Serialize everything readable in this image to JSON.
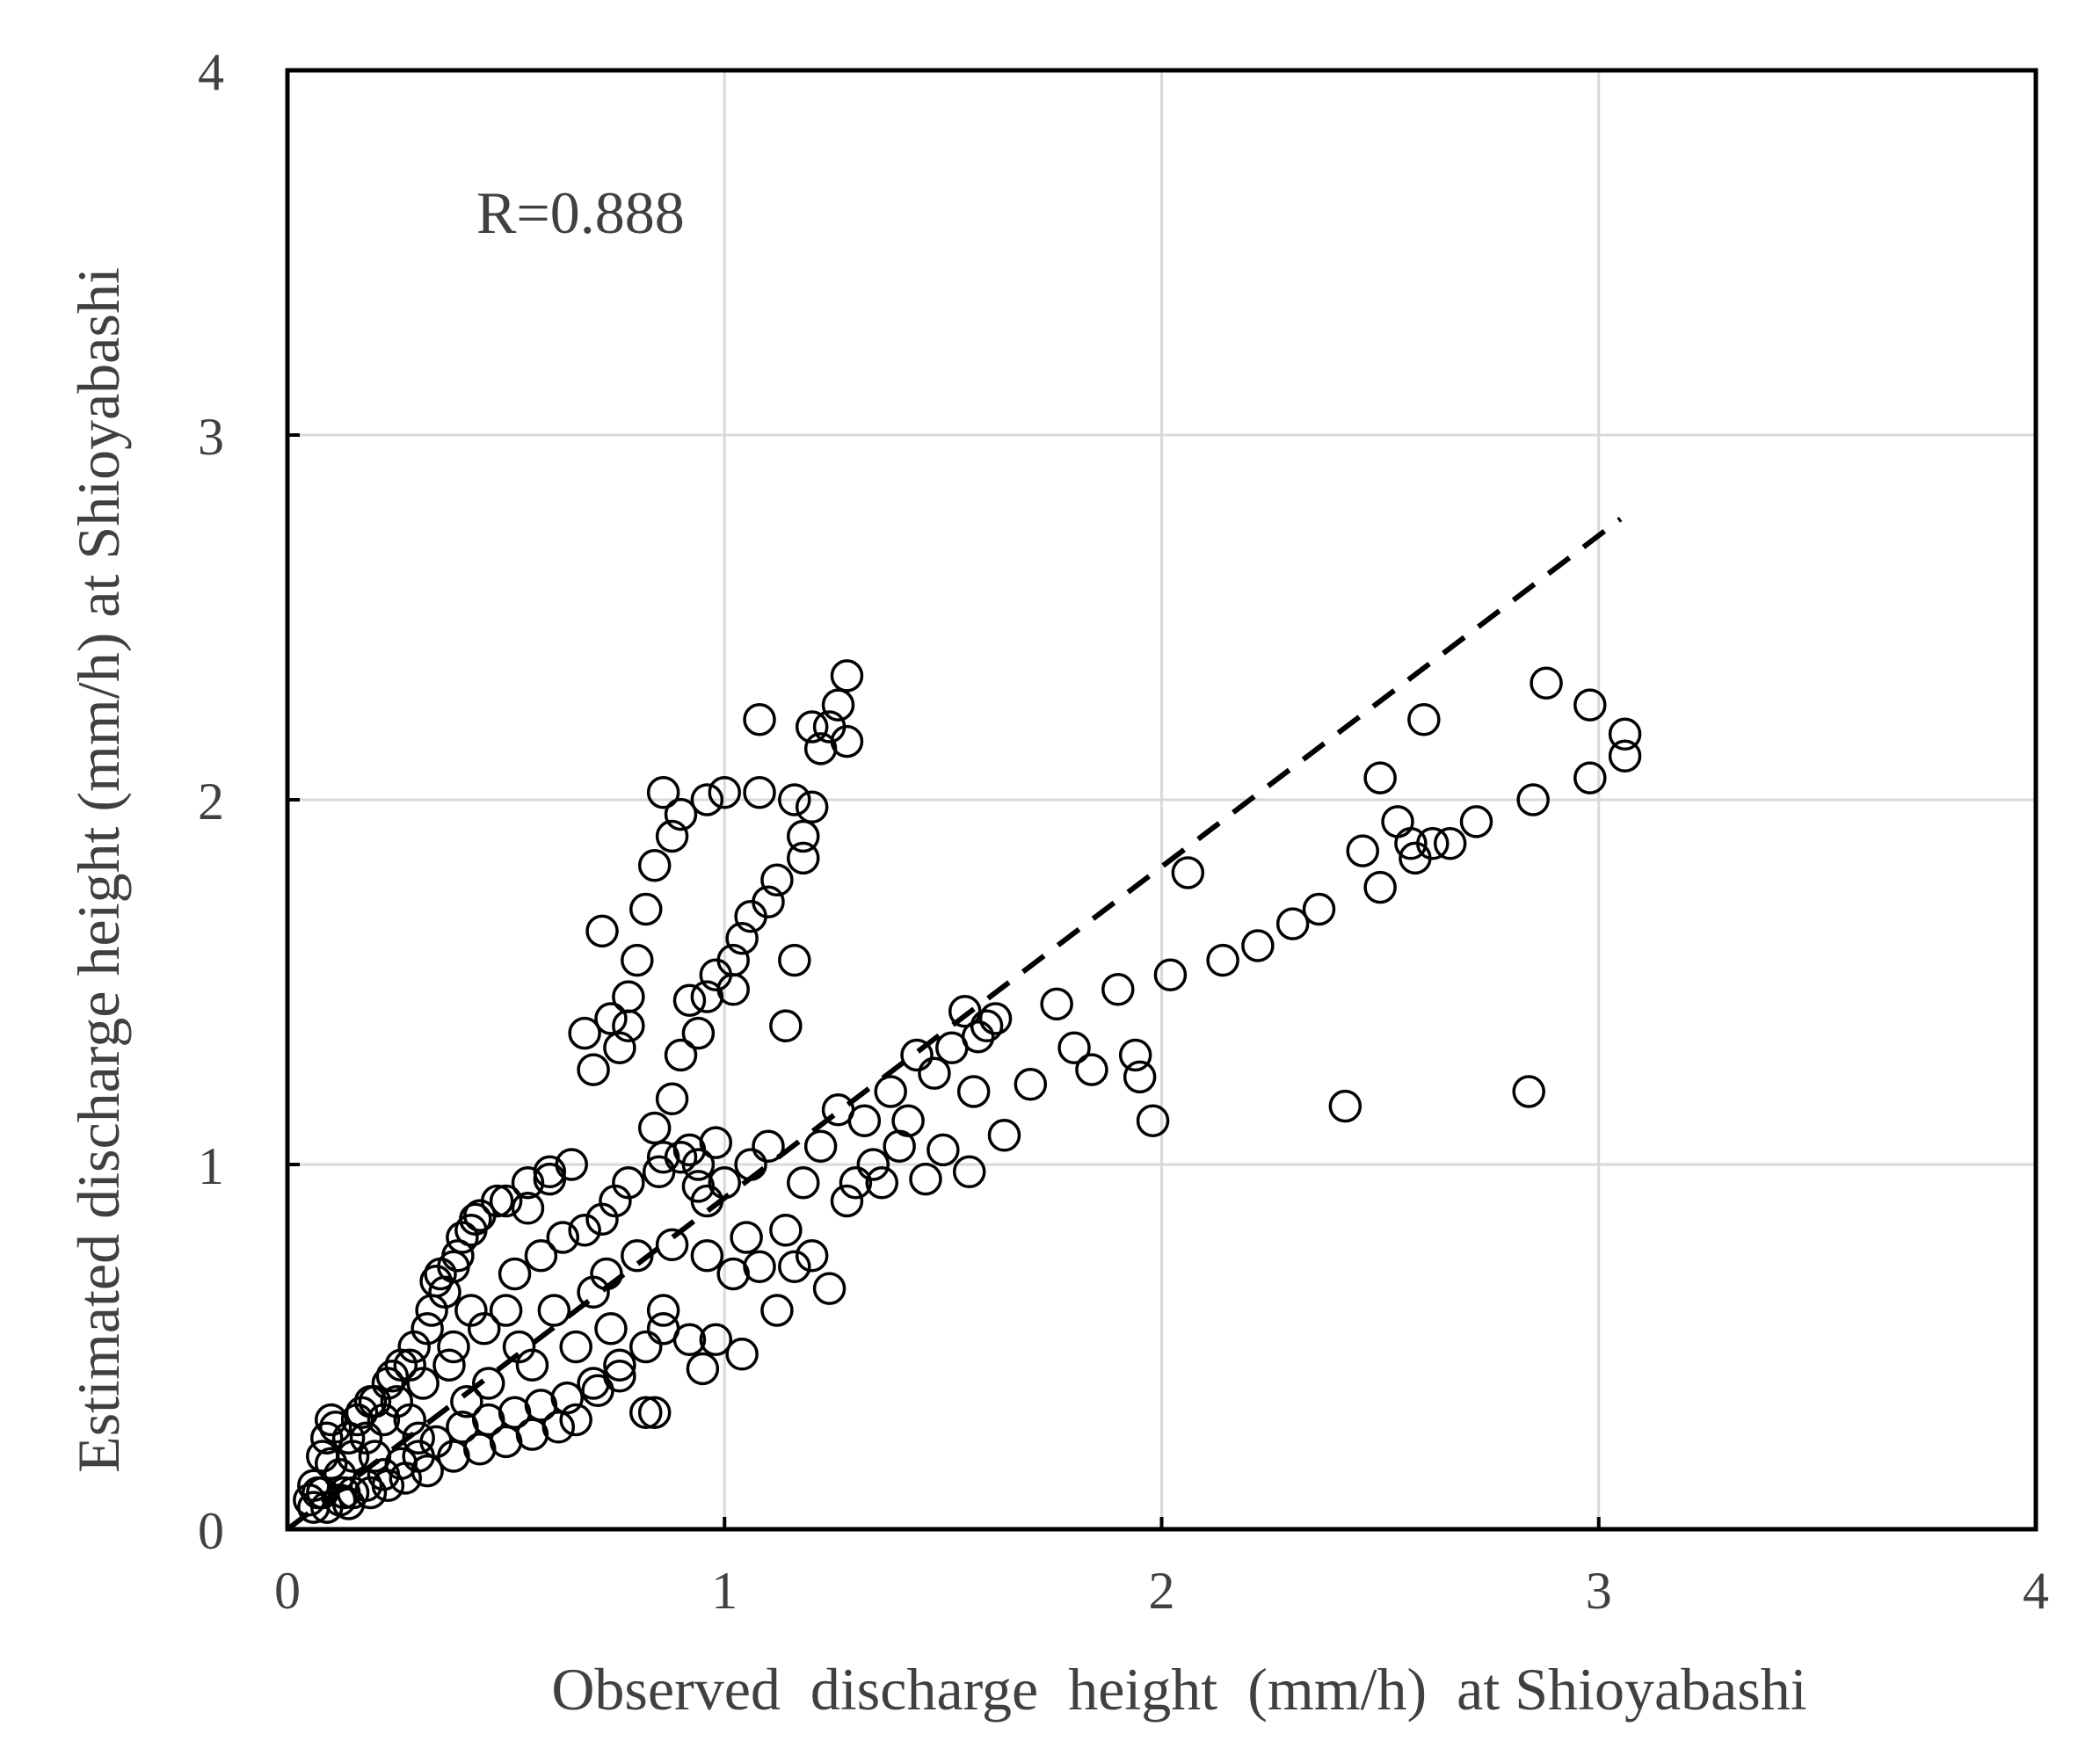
{
  "chart_data": {
    "type": "scatter",
    "title": "",
    "xlabel": "Observed  discharge  height  (mm/h)  at Shioyabashi",
    "ylabel": "Estimated discharge height (mm/h) at Shioyabashi",
    "xlim": [
      0,
      4
    ],
    "ylim": [
      0,
      4
    ],
    "x_ticks": [
      0,
      1,
      2,
      3,
      4
    ],
    "y_ticks": [
      0,
      1,
      2,
      3,
      4
    ],
    "x_tick_labels": [
      "0",
      "1",
      "2",
      "3",
      "4"
    ],
    "y_tick_labels": [
      "0",
      "1",
      "2",
      "3",
      "4"
    ],
    "grid": true,
    "annotation": "R=0.888",
    "marker": "open-circle",
    "fit_line": {
      "style": "dashed",
      "x": [
        0,
        3.05
      ],
      "y": [
        0,
        2.77
      ]
    },
    "series": [
      {
        "points": [
          [
            0.05,
            0.08
          ],
          [
            0.06,
            0.12
          ],
          [
            0.07,
            0.1
          ],
          [
            0.08,
            0.2
          ],
          [
            0.09,
            0.25
          ],
          [
            0.1,
            0.3
          ],
          [
            0.11,
            0.28
          ],
          [
            0.12,
            0.15
          ],
          [
            0.13,
            0.1
          ],
          [
            0.15,
            0.2
          ],
          [
            0.16,
            0.3
          ],
          [
            0.18,
            0.25
          ],
          [
            0.19,
            0.35
          ],
          [
            0.2,
            0.2
          ],
          [
            0.22,
            0.3
          ],
          [
            0.23,
            0.4
          ],
          [
            0.25,
            0.35
          ],
          [
            0.26,
            0.45
          ],
          [
            0.28,
            0.3
          ],
          [
            0.29,
            0.5
          ],
          [
            0.3,
            0.25
          ],
          [
            0.31,
            0.4
          ],
          [
            0.32,
            0.55
          ],
          [
            0.33,
            0.6
          ],
          [
            0.35,
            0.7
          ],
          [
            0.36,
            0.65
          ],
          [
            0.37,
            0.45
          ],
          [
            0.38,
            0.5
          ],
          [
            0.39,
            0.75
          ],
          [
            0.4,
            0.8
          ],
          [
            0.41,
            0.35
          ],
          [
            0.42,
            0.6
          ],
          [
            0.43,
            0.85
          ],
          [
            0.45,
            0.55
          ],
          [
            0.46,
            0.4
          ],
          [
            0.48,
            0.9
          ],
          [
            0.5,
            0.6
          ],
          [
            0.52,
            0.7
          ],
          [
            0.53,
            0.5
          ],
          [
            0.55,
            0.95
          ],
          [
            0.56,
            0.45
          ],
          [
            0.58,
            0.75
          ],
          [
            0.6,
            0.98
          ],
          [
            0.61,
            0.6
          ],
          [
            0.63,
            0.8
          ],
          [
            0.65,
            1.0
          ],
          [
            0.66,
            0.5
          ],
          [
            0.68,
            0.82
          ],
          [
            0.7,
            0.65
          ],
          [
            0.71,
            0.38
          ],
          [
            0.72,
            0.85
          ],
          [
            0.73,
            0.7
          ],
          [
            0.74,
            0.55
          ],
          [
            0.75,
            0.9
          ],
          [
            0.76,
            0.45
          ],
          [
            0.78,
            0.95
          ],
          [
            0.8,
            0.75
          ],
          [
            0.82,
            0.32
          ],
          [
            0.84,
            0.32
          ],
          [
            0.85,
            0.98
          ],
          [
            0.86,
            0.6
          ],
          [
            0.88,
            0.78
          ],
          [
            0.9,
            1.02
          ],
          [
            0.92,
            0.52
          ],
          [
            0.94,
            1.0
          ],
          [
            0.95,
            0.44
          ],
          [
            0.96,
            0.75
          ],
          [
            0.98,
            0.52
          ],
          [
            1.0,
            0.95
          ],
          [
            1.02,
            0.7
          ],
          [
            1.04,
            0.48
          ],
          [
            1.05,
            0.8
          ],
          [
            1.06,
            1.0
          ],
          [
            1.08,
            0.72
          ],
          [
            1.1,
            1.05
          ],
          [
            1.12,
            0.6
          ],
          [
            1.14,
            0.82
          ],
          [
            1.16,
            0.72
          ],
          [
            1.18,
            0.95
          ],
          [
            1.2,
            0.75
          ],
          [
            1.22,
            1.05
          ],
          [
            1.24,
            0.66
          ],
          [
            1.26,
            1.15
          ],
          [
            1.28,
            0.9
          ],
          [
            1.3,
            0.95
          ],
          [
            1.32,
            1.12
          ],
          [
            1.34,
            1.0
          ],
          [
            1.36,
            0.95
          ],
          [
            1.38,
            1.2
          ],
          [
            1.4,
            1.05
          ],
          [
            1.42,
            1.12
          ],
          [
            1.44,
            1.3
          ],
          [
            1.46,
            0.96
          ],
          [
            1.48,
            1.25
          ],
          [
            1.5,
            1.04
          ],
          [
            1.52,
            1.32
          ],
          [
            1.55,
            1.42
          ],
          [
            1.56,
            0.98
          ],
          [
            1.57,
            1.2
          ],
          [
            1.58,
            1.35
          ],
          [
            1.6,
            1.38
          ],
          [
            1.62,
            1.4
          ],
          [
            1.64,
            1.08
          ],
          [
            1.7,
            1.22
          ],
          [
            1.76,
            1.44
          ],
          [
            1.8,
            1.32
          ],
          [
            1.84,
            1.26
          ],
          [
            1.9,
            1.48
          ],
          [
            1.94,
            1.3
          ],
          [
            1.95,
            1.24
          ],
          [
            1.98,
            1.12
          ],
          [
            2.02,
            1.52
          ],
          [
            2.06,
            1.8
          ],
          [
            2.14,
            1.56
          ],
          [
            2.22,
            1.6
          ],
          [
            2.3,
            1.66
          ],
          [
            2.36,
            1.7
          ],
          [
            2.42,
            1.16
          ],
          [
            2.46,
            1.86
          ],
          [
            2.5,
            1.76
          ],
          [
            2.5,
            2.06
          ],
          [
            2.54,
            1.94
          ],
          [
            2.57,
            1.88
          ],
          [
            2.58,
            1.84
          ],
          [
            2.6,
            2.22
          ],
          [
            2.62,
            1.88
          ],
          [
            2.66,
            1.88
          ],
          [
            2.72,
            1.94
          ],
          [
            2.84,
            1.2
          ],
          [
            2.85,
            2.0
          ],
          [
            2.88,
            2.32
          ],
          [
            2.98,
            2.06
          ],
          [
            2.98,
            2.26
          ],
          [
            3.06,
            2.12
          ],
          [
            3.06,
            2.18
          ],
          [
            0.68,
            1.36
          ],
          [
            0.7,
            1.26
          ],
          [
            0.72,
            1.64
          ],
          [
            0.74,
            1.4
          ],
          [
            0.76,
            1.32
          ],
          [
            0.78,
            1.38
          ],
          [
            0.8,
            1.56
          ],
          [
            0.82,
            1.7
          ],
          [
            0.84,
            1.82
          ],
          [
            0.86,
            2.02
          ],
          [
            0.88,
            1.9
          ],
          [
            0.9,
            1.96
          ],
          [
            0.92,
            1.45
          ],
          [
            0.94,
            1.36
          ],
          [
            0.96,
            1.46
          ],
          [
            0.98,
            1.52
          ],
          [
            1.0,
            2.02
          ],
          [
            1.02,
            1.56
          ],
          [
            1.04,
            1.62
          ],
          [
            1.06,
            1.68
          ],
          [
            1.08,
            2.22
          ],
          [
            1.1,
            1.72
          ],
          [
            1.12,
            1.78
          ],
          [
            1.14,
            1.38
          ],
          [
            1.16,
            1.56
          ],
          [
            1.18,
            1.9
          ],
          [
            1.2,
            1.98
          ],
          [
            1.22,
            2.14
          ],
          [
            1.24,
            2.2
          ],
          [
            1.26,
            2.26
          ],
          [
            1.28,
            2.34
          ],
          [
            1.28,
            2.16
          ],
          [
            1.16,
            2.0
          ],
          [
            1.18,
            1.84
          ],
          [
            1.08,
            2.02
          ],
          [
            0.96,
            2.0
          ],
          [
            1.2,
            2.2
          ],
          [
            1.02,
            1.48
          ],
          [
            0.78,
            1.46
          ],
          [
            0.84,
            1.1
          ],
          [
            0.86,
            1.02
          ],
          [
            0.88,
            1.18
          ],
          [
            0.9,
            1.3
          ],
          [
            0.92,
            1.04
          ],
          [
            0.94,
            0.94
          ],
          [
            0.96,
            0.9
          ],
          [
            0.98,
            1.06
          ],
          [
            0.6,
            0.96
          ],
          [
            0.55,
            0.88
          ],
          [
            0.5,
            0.9
          ],
          [
            0.44,
            0.86
          ],
          [
            0.42,
            0.82
          ],
          [
            0.38,
            0.72
          ],
          [
            0.34,
            0.68
          ],
          [
            0.28,
            0.45
          ],
          [
            0.24,
            0.42
          ],
          [
            0.2,
            0.35
          ],
          [
            0.17,
            0.32
          ],
          [
            0.14,
            0.25
          ],
          [
            0.1,
            0.18
          ],
          [
            0.08,
            0.1
          ],
          [
            0.06,
            0.06
          ],
          [
            0.09,
            0.06
          ],
          [
            0.12,
            0.08
          ],
          [
            0.15,
            0.1
          ],
          [
            0.18,
            0.12
          ],
          [
            0.22,
            0.15
          ],
          [
            0.26,
            0.18
          ],
          [
            0.3,
            0.2
          ],
          [
            0.34,
            0.24
          ],
          [
            0.4,
            0.28
          ],
          [
            0.46,
            0.3
          ],
          [
            0.52,
            0.32
          ],
          [
            0.58,
            0.34
          ],
          [
            0.64,
            0.36
          ],
          [
            0.7,
            0.4
          ],
          [
            0.76,
            0.42
          ],
          [
            0.82,
            0.5
          ],
          [
            0.86,
            0.55
          ],
          [
            0.66,
            0.3
          ],
          [
            0.62,
            0.28
          ],
          [
            0.56,
            0.26
          ],
          [
            0.5,
            0.24
          ],
          [
            0.44,
            0.22
          ],
          [
            0.38,
            0.2
          ],
          [
            0.32,
            0.16
          ],
          [
            0.27,
            0.14
          ],
          [
            0.23,
            0.12
          ],
          [
            0.19,
            0.1
          ],
          [
            0.14,
            0.07
          ]
        ]
      }
    ]
  }
}
